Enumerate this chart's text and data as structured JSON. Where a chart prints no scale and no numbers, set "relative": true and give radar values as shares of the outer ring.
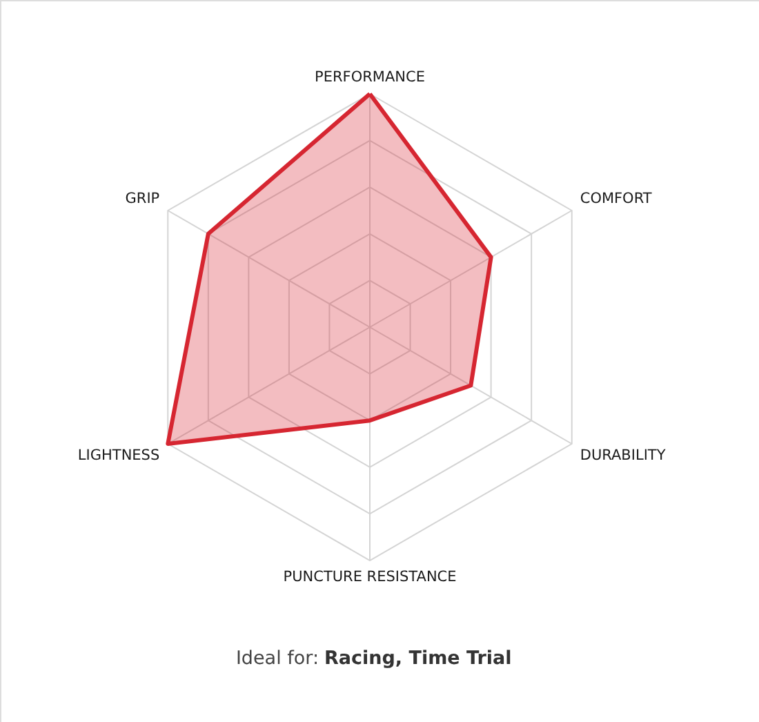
{
  "chart_data": {
    "type": "radar",
    "categories": [
      "PERFORMANCE",
      "COMFORT",
      "DURABILITY",
      "PUNCTURE RESISTANCE",
      "LIGHTNESS",
      "GRIP"
    ],
    "relative": true,
    "grid": true,
    "series": [
      {
        "color": "#d62631",
        "values": [
          1.0,
          0.6,
          0.5,
          0.4,
          1.0,
          0.8
        ]
      }
    ],
    "annotations": [
      "Ideal for:",
      "Racing, Time Trial"
    ]
  }
}
